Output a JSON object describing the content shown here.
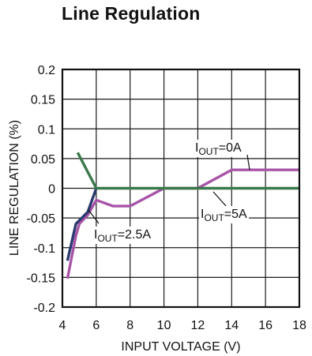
{
  "chart_data": {
    "type": "line",
    "title": "Line Regulation",
    "xlabel": "INPUT VOLTAGE (V)",
    "ylabel": "LINE REGULATION (%)",
    "xlim": [
      4,
      18
    ],
    "ylim": [
      -0.2,
      0.2
    ],
    "x_ticks": [
      "4",
      "6",
      "8",
      "10",
      "12",
      "14",
      "16",
      "18"
    ],
    "y_ticks": [
      "0.2",
      "0.15",
      "0.1",
      "0.05",
      "0",
      "-0.05",
      "-0.1",
      "-0.15",
      "-0.2"
    ],
    "x_tick_values": [
      4,
      6,
      8,
      10,
      12,
      14,
      16,
      18
    ],
    "y_tick_values": [
      0.2,
      0.15,
      0.1,
      0.05,
      0,
      -0.05,
      -0.1,
      -0.15,
      -0.2
    ],
    "grid": true,
    "series": [
      {
        "name": "IOUT=0A",
        "color": "#a855a8",
        "x": [
          4.3,
          4.8,
          5.0,
          5.5,
          6.0,
          7.0,
          8.0,
          10.0,
          12.0,
          14.0,
          18.0
        ],
        "y": [
          -0.152,
          -0.08,
          -0.06,
          -0.045,
          -0.02,
          -0.03,
          -0.03,
          0.0,
          0.0,
          0.031,
          0.031
        ]
      },
      {
        "name": "IOUT=2.5A",
        "color": "#2b3a6e",
        "x": [
          4.3,
          4.8,
          5.5,
          6.0
        ],
        "y": [
          -0.122,
          -0.06,
          -0.04,
          0.0
        ]
      },
      {
        "name": "IOUT=5A",
        "color": "#3a7a4a",
        "x": [
          4.9,
          6.0,
          18.0
        ],
        "y": [
          0.06,
          0.0,
          0.0
        ]
      }
    ],
    "annotations": [
      {
        "main": "I",
        "sub": "OUT",
        "rest": "=0A"
      },
      {
        "main": "I",
        "sub": "OUT",
        "rest": "=2.5A"
      },
      {
        "main": "I",
        "sub": "OUT",
        "rest": "=5A"
      }
    ]
  }
}
